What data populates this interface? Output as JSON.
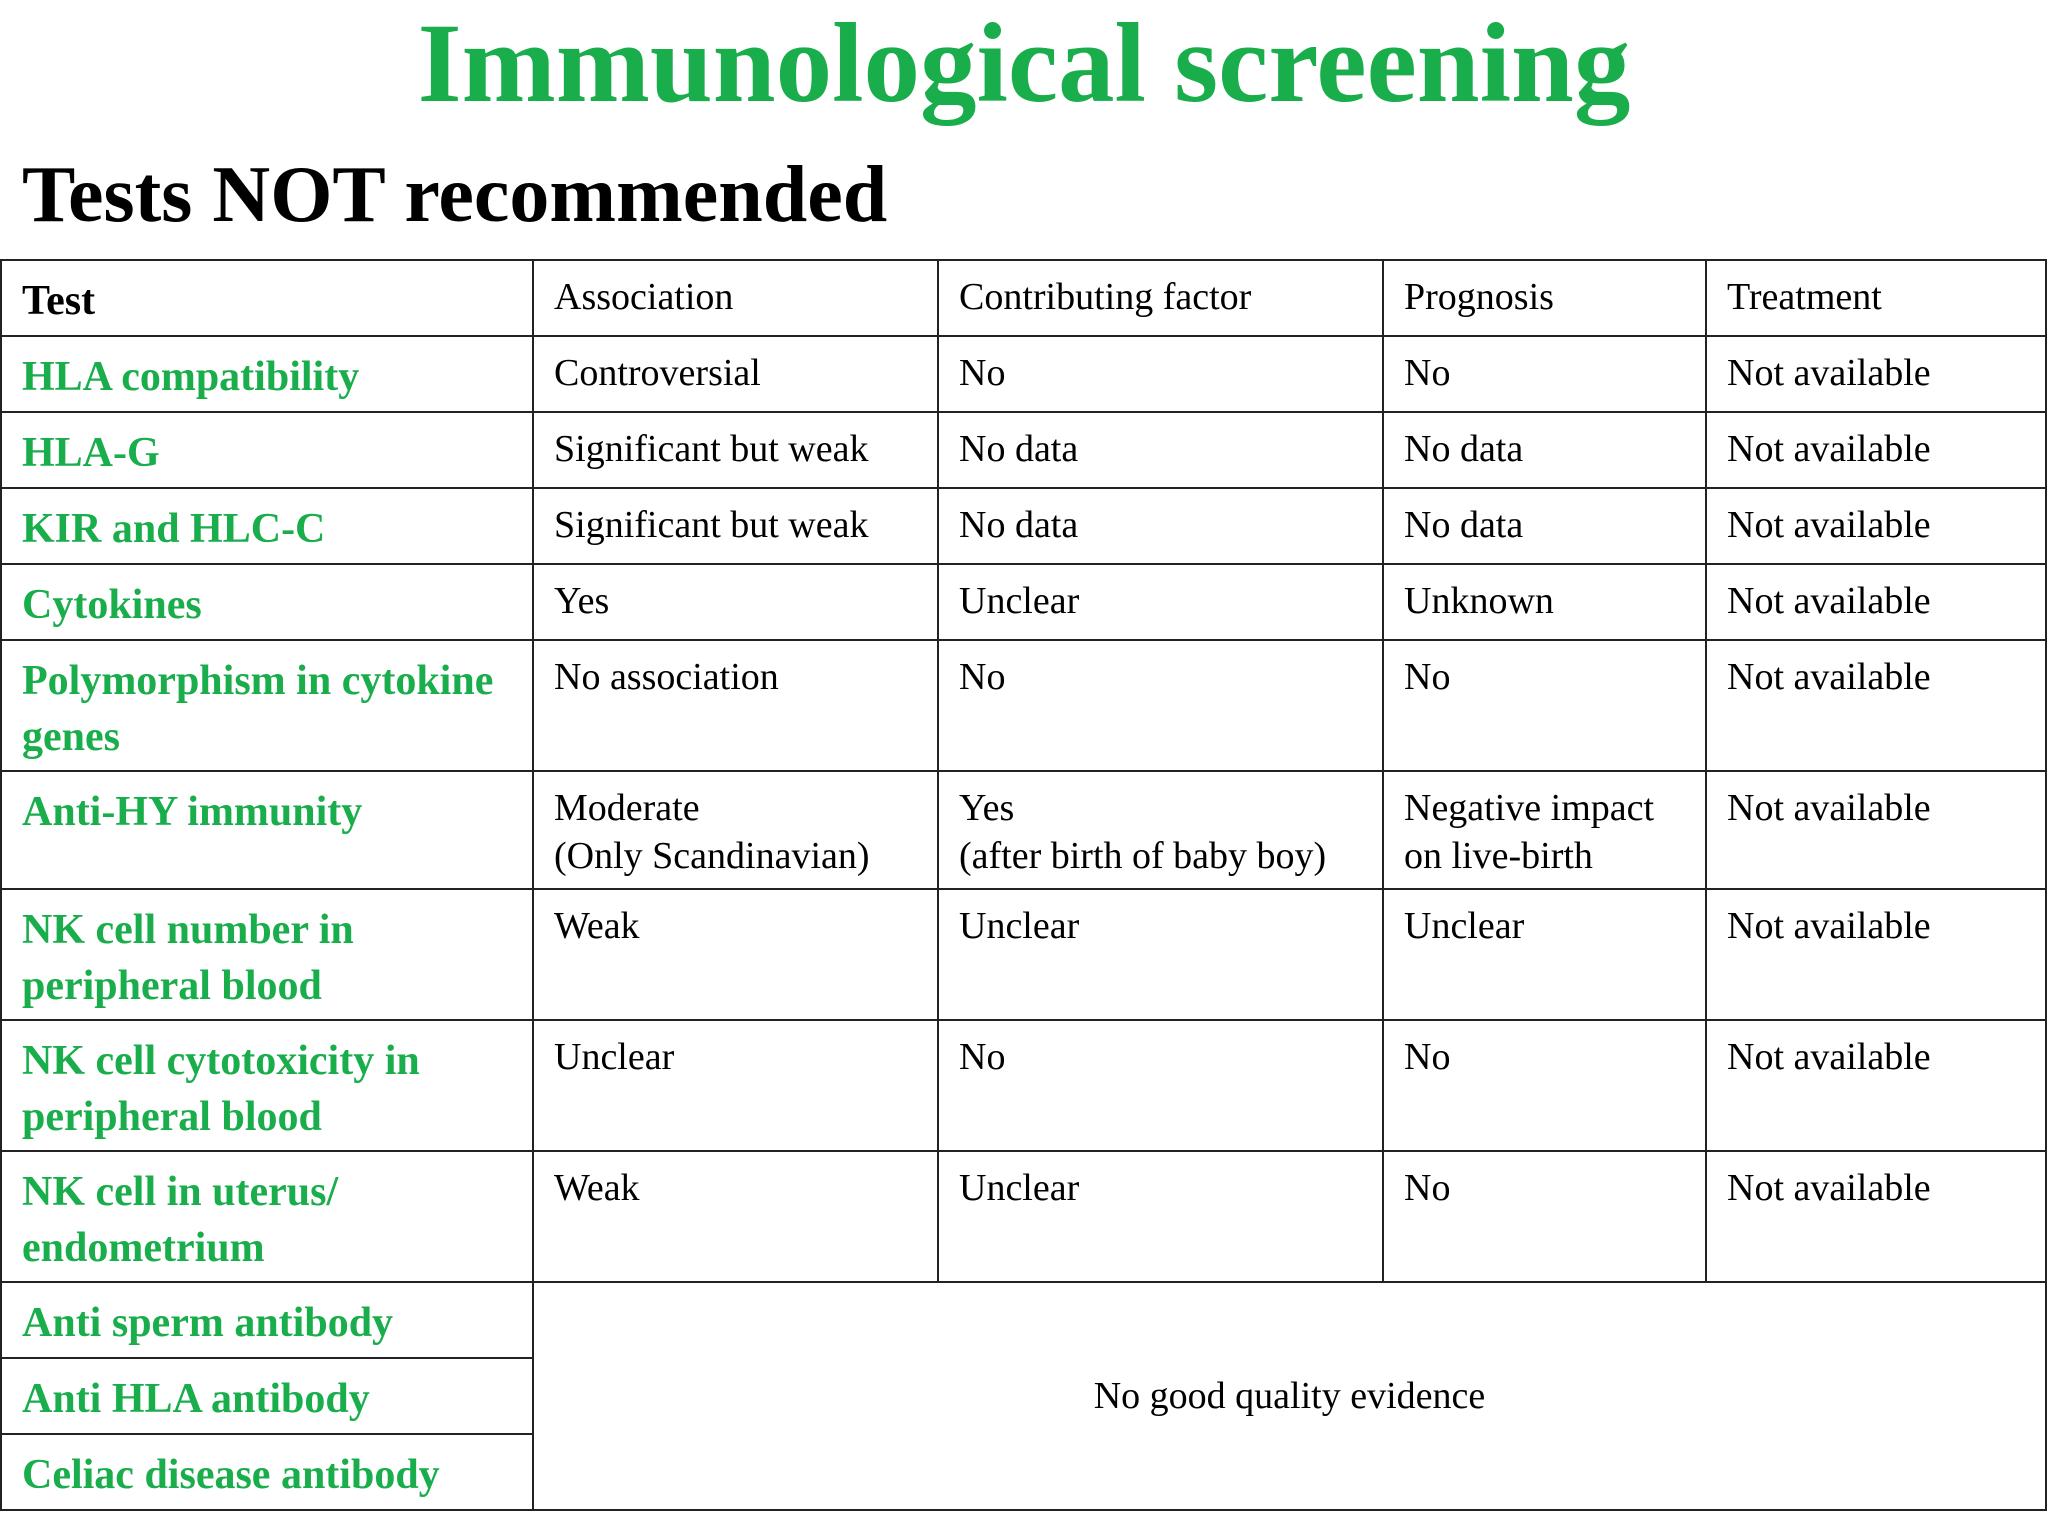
{
  "title": "Immunological screening",
  "subtitle": "Tests NOT recommended",
  "colors": {
    "accent_green": "#1aad4b",
    "text": "#000000",
    "grid": "#222222"
  },
  "table": {
    "headers": [
      "Test",
      "Association",
      "Contributing factor",
      "Prognosis",
      "Treatment"
    ],
    "rows": [
      {
        "test": "HLA compatibility",
        "association": "Controversial",
        "contributing": "No",
        "prognosis": "No",
        "treatment": "Not available"
      },
      {
        "test": "HLA-G",
        "association": "Significant but weak",
        "contributing": "No data",
        "prognosis": "No data",
        "treatment": "Not available"
      },
      {
        "test": "KIR and HLC-C",
        "association": "Significant but weak",
        "contributing": "No data",
        "prognosis": "No data",
        "treatment": "Not available"
      },
      {
        "test": "Cytokines",
        "association": "Yes",
        "contributing": "Unclear",
        "prognosis": "Unknown",
        "treatment": "Not available"
      },
      {
        "test": "Polymorphism in cytokine genes",
        "association": "No association",
        "contributing": "No",
        "prognosis": "No",
        "treatment": "Not available"
      },
      {
        "test": "Anti-HY immunity",
        "association_line1": "Moderate",
        "association_line2": "(Only Scandinavian)",
        "contributing_line1": "Yes",
        "contributing_line2": "(after birth of baby boy)",
        "prognosis_line1": "Negative impact",
        "prognosis_line2": "on live-birth",
        "treatment": "Not available"
      },
      {
        "test": "NK cell number in peripheral blood",
        "association": "Weak",
        "contributing": "Unclear",
        "prognosis": "Unclear",
        "treatment": "Not available"
      },
      {
        "test": "NK cell cytotoxicity in peripheral blood",
        "association": "Unclear",
        "contributing": "No",
        "prognosis": "No",
        "treatment": "Not available"
      },
      {
        "test_line1": "NK cell in uterus/",
        "test_line2": "endometrium",
        "association": "Weak",
        "contributing": "Unclear",
        "prognosis": "No",
        "treatment": "Not available"
      },
      {
        "test": "Anti sperm antibody"
      },
      {
        "test": "Anti HLA antibody"
      },
      {
        "test": "Celiac disease antibody"
      }
    ],
    "merged_note": "No good quality evidence"
  }
}
